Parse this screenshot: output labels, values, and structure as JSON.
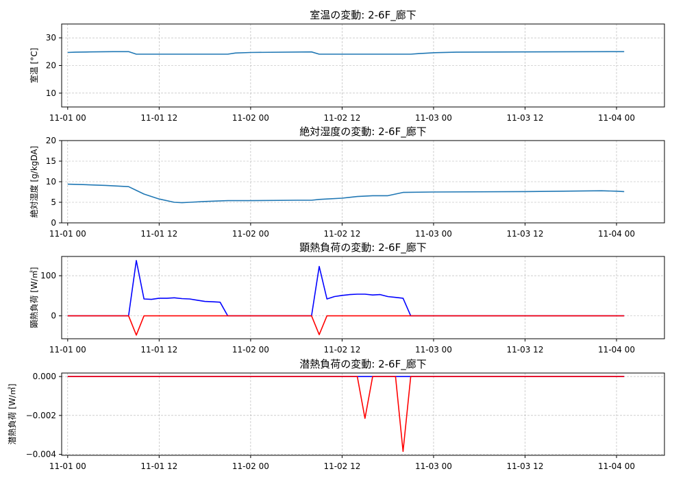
{
  "chart_data": [
    {
      "type": "line",
      "title": "室温の変動: 2-6F_廊下",
      "ylabel": "室温 [°C]",
      "ylim": [
        5,
        35
      ],
      "yticks": [
        10,
        20,
        30
      ],
      "ytick_labels": [
        "10",
        "20",
        "30"
      ],
      "xlim": [
        -0.033,
        3.262
      ],
      "x_ticks": [
        0,
        0.5,
        1,
        1.5,
        2,
        2.5,
        3
      ],
      "x_tick_labels": [
        "11-01 00",
        "11-01 12",
        "11-02 00",
        "11-02 12",
        "11-03 00",
        "11-03 12",
        "11-04 00"
      ],
      "grid": true,
      "series": [
        {
          "color": "#1f77b4",
          "x": [
            0,
            0.042,
            0.125,
            0.25,
            0.333,
            0.375,
            0.5,
            0.625,
            0.875,
            0.917,
            1.0,
            1.333,
            1.375,
            1.5,
            1.875,
            1.917,
            2.0,
            2.125,
            2.5,
            3.0,
            3.042
          ],
          "y": [
            24.7,
            24.8,
            24.9,
            25.0,
            25.0,
            24.1,
            24.1,
            24.1,
            24.1,
            24.5,
            24.7,
            24.9,
            24.1,
            24.1,
            24.1,
            24.3,
            24.6,
            24.8,
            24.9,
            25.0,
            25.0
          ]
        }
      ]
    },
    {
      "type": "line",
      "title": "絶対湿度の変動: 2-6F_廊下",
      "ylabel": "絶対湿度 [g/kgDA]",
      "ylim": [
        0,
        20
      ],
      "yticks": [
        0,
        5,
        10,
        15,
        20
      ],
      "ytick_labels": [
        "0",
        "5",
        "10",
        "15",
        "20"
      ],
      "xlim": [
        -0.033,
        3.262
      ],
      "x_ticks": [
        0,
        0.5,
        1,
        1.5,
        2,
        2.5,
        3
      ],
      "x_tick_labels": [
        "11-01 00",
        "11-01 12",
        "11-02 00",
        "11-02 12",
        "11-03 00",
        "11-03 12",
        "11-04 00"
      ],
      "grid": true,
      "series": [
        {
          "color": "#1f77b4",
          "x": [
            0,
            0.083,
            0.208,
            0.333,
            0.375,
            0.417,
            0.5,
            0.583,
            0.625,
            0.667,
            0.75,
            0.875,
            1.0,
            1.25,
            1.333,
            1.375,
            1.417,
            1.5,
            1.583,
            1.667,
            1.708,
            1.75,
            1.833,
            2.0,
            2.5,
            2.917,
            3.0,
            3.042
          ],
          "y": [
            9.4,
            9.3,
            9.1,
            8.8,
            7.9,
            7.0,
            5.8,
            5.0,
            4.9,
            5.0,
            5.2,
            5.4,
            5.4,
            5.5,
            5.5,
            5.7,
            5.8,
            6.0,
            6.4,
            6.6,
            6.6,
            6.6,
            7.4,
            7.5,
            7.6,
            7.8,
            7.7,
            7.6
          ]
        }
      ]
    },
    {
      "type": "line",
      "title": "顕熱負荷の変動: 2-6F_廊下",
      "ylabel": "顕熱負荷 [W/㎡]",
      "ylim": [
        -57,
        148
      ],
      "yticks": [
        0,
        100
      ],
      "ytick_labels": [
        "0",
        "100"
      ],
      "xlim": [
        -0.033,
        3.262
      ],
      "x_ticks": [
        0,
        0.5,
        1,
        1.5,
        2,
        2.5,
        3
      ],
      "x_tick_labels": [
        "11-01 00",
        "11-01 12",
        "11-02 00",
        "11-02 12",
        "11-03 00",
        "11-03 12",
        "11-04 00"
      ],
      "grid": true,
      "series": [
        {
          "color": "#0000ff",
          "x": [
            0,
            0.333,
            0.375,
            0.417,
            0.458,
            0.5,
            0.542,
            0.583,
            0.625,
            0.667,
            0.708,
            0.75,
            0.792,
            0.833,
            0.875,
            0.917,
            1.0,
            1.333,
            1.375,
            1.417,
            1.458,
            1.5,
            1.542,
            1.583,
            1.625,
            1.667,
            1.708,
            1.75,
            1.792,
            1.833,
            1.875,
            1.917,
            2.0,
            3.042
          ],
          "y": [
            0,
            0,
            138,
            42,
            41,
            44,
            44,
            45,
            43,
            42,
            39,
            36,
            35,
            34,
            0,
            0,
            0,
            0,
            123,
            42,
            48,
            51,
            53,
            54,
            54,
            52,
            53,
            48,
            46,
            44,
            0,
            0,
            0,
            0
          ]
        },
        {
          "color": "#ff0000",
          "x": [
            0,
            0.333,
            0.375,
            0.417,
            1.333,
            1.375,
            1.417,
            3.042
          ],
          "y": [
            0,
            0,
            -48,
            0,
            0,
            -47,
            0,
            0
          ]
        }
      ]
    },
    {
      "type": "line",
      "title": "潜熱負荷の変動: 2-6F_廊下",
      "ylabel": "潜熱負荷 [W/㎡]",
      "ylim": [
        -0.00405,
        0.00018
      ],
      "yticks": [
        -0.004,
        -0.002,
        0.0
      ],
      "ytick_labels": [
        "−0.004",
        "−0.002",
        "0.000"
      ],
      "xlim": [
        -0.033,
        3.262
      ],
      "x_ticks": [
        0,
        0.5,
        1,
        1.5,
        2,
        2.5,
        3
      ],
      "x_tick_labels": [
        "11-01 00",
        "11-01 12",
        "11-02 00",
        "11-02 12",
        "11-03 00",
        "11-03 12",
        "11-04 00"
      ],
      "grid": true,
      "series": [
        {
          "color": "#0000ff",
          "x": [
            0,
            3.042
          ],
          "y": [
            0,
            0
          ]
        },
        {
          "color": "#ff0000",
          "x": [
            0,
            1.583,
            1.625,
            1.667,
            1.792,
            1.833,
            1.875,
            3.042
          ],
          "y": [
            0,
            0,
            -0.00215,
            0,
            0,
            -0.00385,
            0,
            0
          ]
        }
      ]
    }
  ]
}
